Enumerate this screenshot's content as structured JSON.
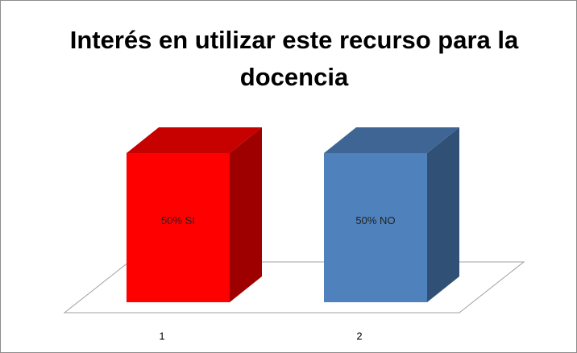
{
  "chart_data": {
    "type": "bar3d",
    "title": [
      "Interés en utilizar este recurso para la",
      "docencia"
    ],
    "categories": [
      "1",
      "2"
    ],
    "values": [
      50,
      50
    ],
    "value_labels": [
      "50% SI",
      "50% NO"
    ],
    "colors": [
      "#ff0000",
      "#4f81bd"
    ]
  }
}
